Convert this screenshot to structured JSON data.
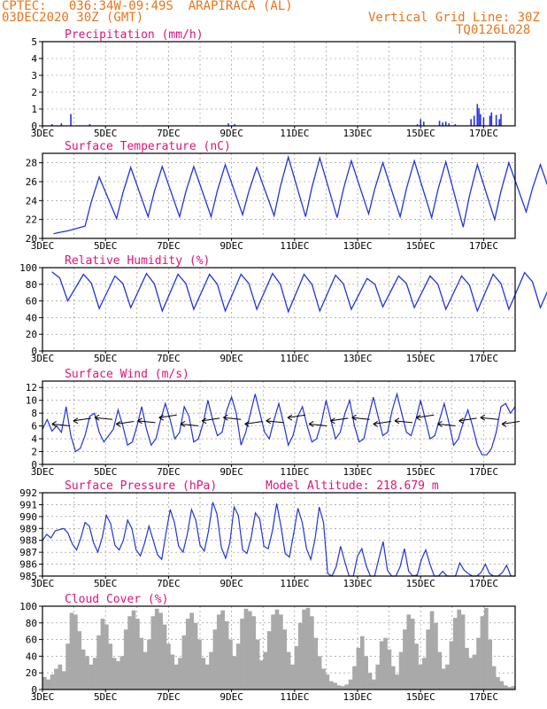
{
  "header": {
    "line1_left": "CPTEC:   036:34W-09:49S  ARAPIRACA (AL)",
    "line2_left": "03DEC2020 30Z (GMT)",
    "line2_right": "Vertical Grid Line: 30Z",
    "line3_right": "TQ0126L028"
  },
  "colors": {
    "header": "#e8741c",
    "title": "#e0127a",
    "series": "#2233dd",
    "cloud": "#a9a9a9",
    "grid": "#888888"
  },
  "chart_data": [
    {
      "id": "precip",
      "type": "bar",
      "title": "Precipitation (mm/h)",
      "ylim": [
        0,
        5
      ],
      "yticks": [
        0,
        1,
        2,
        3,
        4,
        5
      ],
      "xlabels": [
        "3DEC",
        "5DEC",
        "7DEC",
        "9DEC",
        "11DEC",
        "13DEC",
        "15DEC",
        "17DEC"
      ],
      "bars": [
        [
          0.3,
          0.1
        ],
        [
          0.6,
          0.15
        ],
        [
          0.9,
          0.7
        ],
        [
          1.5,
          0.1
        ],
        [
          5.9,
          0.15
        ],
        [
          6.1,
          0.1
        ],
        [
          11.9,
          0.1
        ],
        [
          12.0,
          0.4
        ],
        [
          12.1,
          0.25
        ],
        [
          12.6,
          0.3
        ],
        [
          12.7,
          0.2
        ],
        [
          12.8,
          0.25
        ],
        [
          12.9,
          0.15
        ],
        [
          13.1,
          0.1
        ],
        [
          13.6,
          0.4
        ],
        [
          13.7,
          0.6
        ],
        [
          13.8,
          1.3
        ],
        [
          13.85,
          1.05
        ],
        [
          13.9,
          0.7
        ],
        [
          14.0,
          0.5
        ],
        [
          14.2,
          0.6
        ],
        [
          14.25,
          0.8
        ],
        [
          14.4,
          0.65
        ],
        [
          14.5,
          0.4
        ],
        [
          14.55,
          0.7
        ]
      ]
    },
    {
      "id": "temp",
      "type": "line",
      "title": "Surface Temperature (nC)",
      "ylim": [
        20,
        29
      ],
      "yticks": [
        20,
        22,
        24,
        26,
        28
      ],
      "xlabels": [
        "3DEC",
        "5DEC",
        "7DEC",
        "9DEC",
        "11DEC",
        "13DEC",
        "15DEC",
        "17DEC"
      ],
      "min_max": [
        [
          20.5,
          20.8
        ],
        [
          21.3,
          26.5
        ],
        [
          22.1,
          27.5
        ],
        [
          22.3,
          27.6
        ],
        [
          22.3,
          27.6
        ],
        [
          22.3,
          27.8
        ],
        [
          22.5,
          27.5
        ],
        [
          22.4,
          28.6
        ],
        [
          22.3,
          28.5
        ],
        [
          22.2,
          28.2
        ],
        [
          22.6,
          28.0
        ],
        [
          22.3,
          28.2
        ],
        [
          22.2,
          28.1
        ],
        [
          21.2,
          27.8
        ],
        [
          22.0,
          28.0
        ],
        [
          22.8,
          27.8
        ],
        [
          22.5,
          28.9
        ]
      ]
    },
    {
      "id": "rh",
      "type": "line",
      "title": "Relative Humidity (%)",
      "ylim": [
        0,
        100
      ],
      "yticks": [
        0,
        20,
        40,
        60,
        80,
        100
      ],
      "xlabels": [
        "3DEC",
        "5DEC",
        "7DEC",
        "9DEC",
        "11DEC",
        "13DEC",
        "15DEC",
        "17DEC"
      ],
      "min_max": [
        [
          60,
          95
        ],
        [
          51,
          92
        ],
        [
          52,
          90
        ],
        [
          48,
          93
        ],
        [
          50,
          92
        ],
        [
          48,
          92
        ],
        [
          50,
          92
        ],
        [
          47,
          93
        ],
        [
          48,
          92
        ],
        [
          50,
          91
        ],
        [
          53,
          87
        ],
        [
          52,
          90
        ],
        [
          50,
          90
        ],
        [
          48,
          90
        ],
        [
          50,
          92
        ],
        [
          52,
          94
        ],
        [
          48,
          95
        ]
      ]
    },
    {
      "id": "wind",
      "type": "line",
      "title": "Surface Wind (m/s)",
      "ylim": [
        0,
        13
      ],
      "yticks": [
        0,
        2,
        4,
        6,
        8,
        10,
        12
      ],
      "xlabels": [
        "3DEC",
        "5DEC",
        "7DEC",
        "9DEC",
        "11DEC",
        "13DEC",
        "15DEC",
        "17DEC"
      ],
      "speed": [
        5.5,
        7.0,
        5.2,
        6.0,
        5.0,
        9.0,
        4.5,
        2.0,
        2.5,
        4.5,
        7.5,
        8.0,
        5.0,
        3.5,
        4.5,
        5.5,
        8.5,
        6.0,
        3.0,
        3.5,
        6.0,
        9.0,
        5.5,
        3.0,
        4.0,
        7.0,
        9.5,
        7.0,
        4.0,
        5.0,
        9.0,
        7.5,
        3.5,
        4.0,
        6.5,
        10.0,
        7.0,
        4.5,
        5.0,
        8.5,
        10.5,
        8.0,
        3.0,
        5.0,
        8.0,
        11.0,
        8.0,
        5.0,
        4.0,
        7.0,
        9.5,
        6.5,
        3.0,
        4.5,
        7.5,
        9.0,
        6.0,
        3.5,
        4.0,
        6.5,
        10.0,
        7.0,
        4.0,
        5.0,
        8.0,
        10.0,
        6.0,
        3.5,
        4.0,
        7.5,
        10.5,
        7.5,
        4.5,
        5.0,
        8.5,
        11.0,
        8.0,
        5.0,
        4.5,
        7.0,
        10.0,
        7.0,
        4.0,
        4.5,
        7.0,
        9.5,
        6.5,
        3.0,
        4.0,
        6.5,
        8.5,
        6.0,
        3.0,
        1.5,
        1.5,
        2.5,
        5.0,
        9.0,
        9.5,
        8.0,
        9.0
      ]
    },
    {
      "id": "pressure",
      "type": "line",
      "title": "Surface Pressure (hPa)",
      "subtitle": "Model Altitude: 218.679 m",
      "ylim": [
        985,
        992
      ],
      "yticks": [
        985,
        986,
        987,
        988,
        989,
        990,
        991,
        992
      ],
      "xlabels": [
        "3DEC",
        "5DEC",
        "7DEC",
        "9DEC",
        "11DEC",
        "13DEC",
        "15DEC",
        "17DEC"
      ],
      "values": [
        988.0,
        988.5,
        988.2,
        988.8,
        988.9,
        989.0,
        988.6,
        987.7,
        987.2,
        988.2,
        989.5,
        989.2,
        987.8,
        987.0,
        988.2,
        990.1,
        989.4,
        987.6,
        987.2,
        988.0,
        989.7,
        989.0,
        987.2,
        986.7,
        987.8,
        989.2,
        988.0,
        986.8,
        986.4,
        988.6,
        990.6,
        989.5,
        987.5,
        987.0,
        988.5,
        990.6,
        989.7,
        987.6,
        987.1,
        988.8,
        991.2,
        990.2,
        987.4,
        986.5,
        987.8,
        990.8,
        990.1,
        987.2,
        986.9,
        988.2,
        990.3,
        989.8,
        987.5,
        987.3,
        988.8,
        991.1,
        989.2,
        986.9,
        986.6,
        988.6,
        990.7,
        989.5,
        987.3,
        986.4,
        988.1,
        990.8,
        989.5,
        985.2,
        984.6,
        985.8,
        987.5,
        986.2,
        984.8,
        984.9,
        986.7,
        987.3,
        985.9,
        984.7,
        985.0,
        986.5,
        987.9,
        985.5,
        984.6,
        984.9,
        985.8,
        987.3,
        985.4,
        984.7,
        985.1,
        986.4,
        987.2,
        986.0,
        984.7,
        984.9,
        985.4,
        985.0,
        984.4,
        984.8,
        986.1,
        985.5,
        985.2,
        985.0,
        984.8,
        985.3,
        986.0,
        985.2,
        984.6,
        984.8,
        985.3,
        985.9,
        985.0,
        984.5
      ]
    },
    {
      "id": "cloud",
      "type": "bar",
      "title": "Cloud Cover (%)",
      "ylim": [
        0,
        100
      ],
      "yticks": [
        0,
        20,
        40,
        60,
        80,
        100
      ],
      "xlabels": [
        "3DEC",
        "5DEC",
        "7DEC",
        "9DEC",
        "11DEC",
        "13DEC",
        "15DEC",
        "17DEC"
      ],
      "values": [
        15,
        12,
        18,
        25,
        30,
        22,
        55,
        92,
        90,
        70,
        48,
        40,
        30,
        38,
        65,
        85,
        78,
        55,
        38,
        34,
        40,
        72,
        88,
        95,
        85,
        62,
        45,
        60,
        88,
        97,
        92,
        78,
        55,
        42,
        30,
        38,
        65,
        85,
        92,
        80,
        60,
        38,
        30,
        45,
        72,
        90,
        95,
        82,
        60,
        40,
        55,
        85,
        97,
        94,
        88,
        60,
        35,
        45,
        70,
        90,
        96,
        90,
        72,
        45,
        30,
        52,
        80,
        96,
        98,
        88,
        62,
        40,
        25,
        18,
        10,
        8,
        5,
        4,
        6,
        12,
        28,
        50,
        64,
        40,
        20,
        12,
        30,
        58,
        62,
        48,
        28,
        18,
        45,
        72,
        90,
        85,
        55,
        30,
        38,
        72,
        94,
        80,
        45,
        25,
        30,
        58,
        86,
        96,
        90,
        50,
        38,
        42,
        62,
        88,
        98,
        60,
        28,
        15,
        10,
        5,
        3,
        4
      ]
    }
  ]
}
